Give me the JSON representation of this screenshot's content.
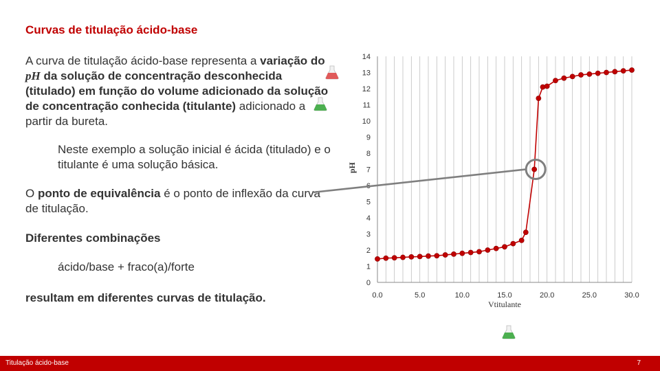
{
  "slide": {
    "title": "Curvas de titulação ácido-base",
    "p1": {
      "t1": "A curva de titulação ácido-base representa a ",
      "b1": "variação do ",
      "b1i": "pH",
      "b2": " da solução de concentração desconhecida (titulado) em função do volume adicionado da solução de concentração conhecida (titulante)",
      "t2": " adicionado a partir da bureta."
    },
    "p2": "Neste exemplo a solução inicial é ácida (titulado) e o titulante é uma solução básica.",
    "p3": {
      "t1": "O ",
      "b1": "ponto de equivalência",
      "t2": " é o ponto de inflexão da curva de titulação."
    },
    "p4": "Diferentes combinações",
    "p5": "ácido/base + fraco(a)/forte",
    "p6": "resultam em diferentes curvas de titulação.",
    "footer_left": "Titulação ácido-base",
    "page_number": "7",
    "icons": [
      "flask-red-icon",
      "flask-green-icon",
      "flask-green-icon"
    ],
    "colors": {
      "accent": "#c00000",
      "curve": "#c00000",
      "marker_edge": "#8b0000",
      "callout": "#7f7f7f",
      "flask_red": "#e05a5a",
      "flask_green": "#4caf50"
    }
  },
  "chart_data": {
    "type": "line",
    "xlabel": "Vtitulante",
    "ylabel": "pH",
    "xlim": [
      0,
      30
    ],
    "ylim": [
      0,
      14
    ],
    "x_ticks": [
      "0.0",
      "5.0",
      "10.0",
      "15.0",
      "20.0",
      "25.0",
      "30.0"
    ],
    "y_ticks": [
      "0",
      "1",
      "2",
      "3",
      "4",
      "5",
      "6",
      "7",
      "8",
      "9",
      "10",
      "11",
      "12",
      "13",
      "14"
    ],
    "grid": "vertical",
    "series": [
      {
        "x": [
          0,
          1,
          2,
          3,
          4,
          5,
          6,
          7,
          8,
          9,
          10,
          11,
          12,
          13,
          14,
          15,
          16,
          17,
          17.5,
          18.5,
          19,
          19.5,
          20,
          21,
          22,
          23,
          24,
          25,
          26,
          27,
          28,
          29,
          30
        ],
        "y": [
          1.45,
          1.5,
          1.52,
          1.55,
          1.58,
          1.6,
          1.63,
          1.65,
          1.7,
          1.75,
          1.8,
          1.85,
          1.9,
          2.0,
          2.1,
          2.2,
          2.4,
          2.6,
          3.1,
          7.0,
          11.4,
          12.1,
          12.15,
          12.5,
          12.65,
          12.75,
          12.85,
          12.9,
          12.95,
          13.0,
          13.05,
          13.1,
          13.15
        ]
      }
    ],
    "equivalence_point": {
      "x": 18.5,
      "y": 7.0
    }
  }
}
